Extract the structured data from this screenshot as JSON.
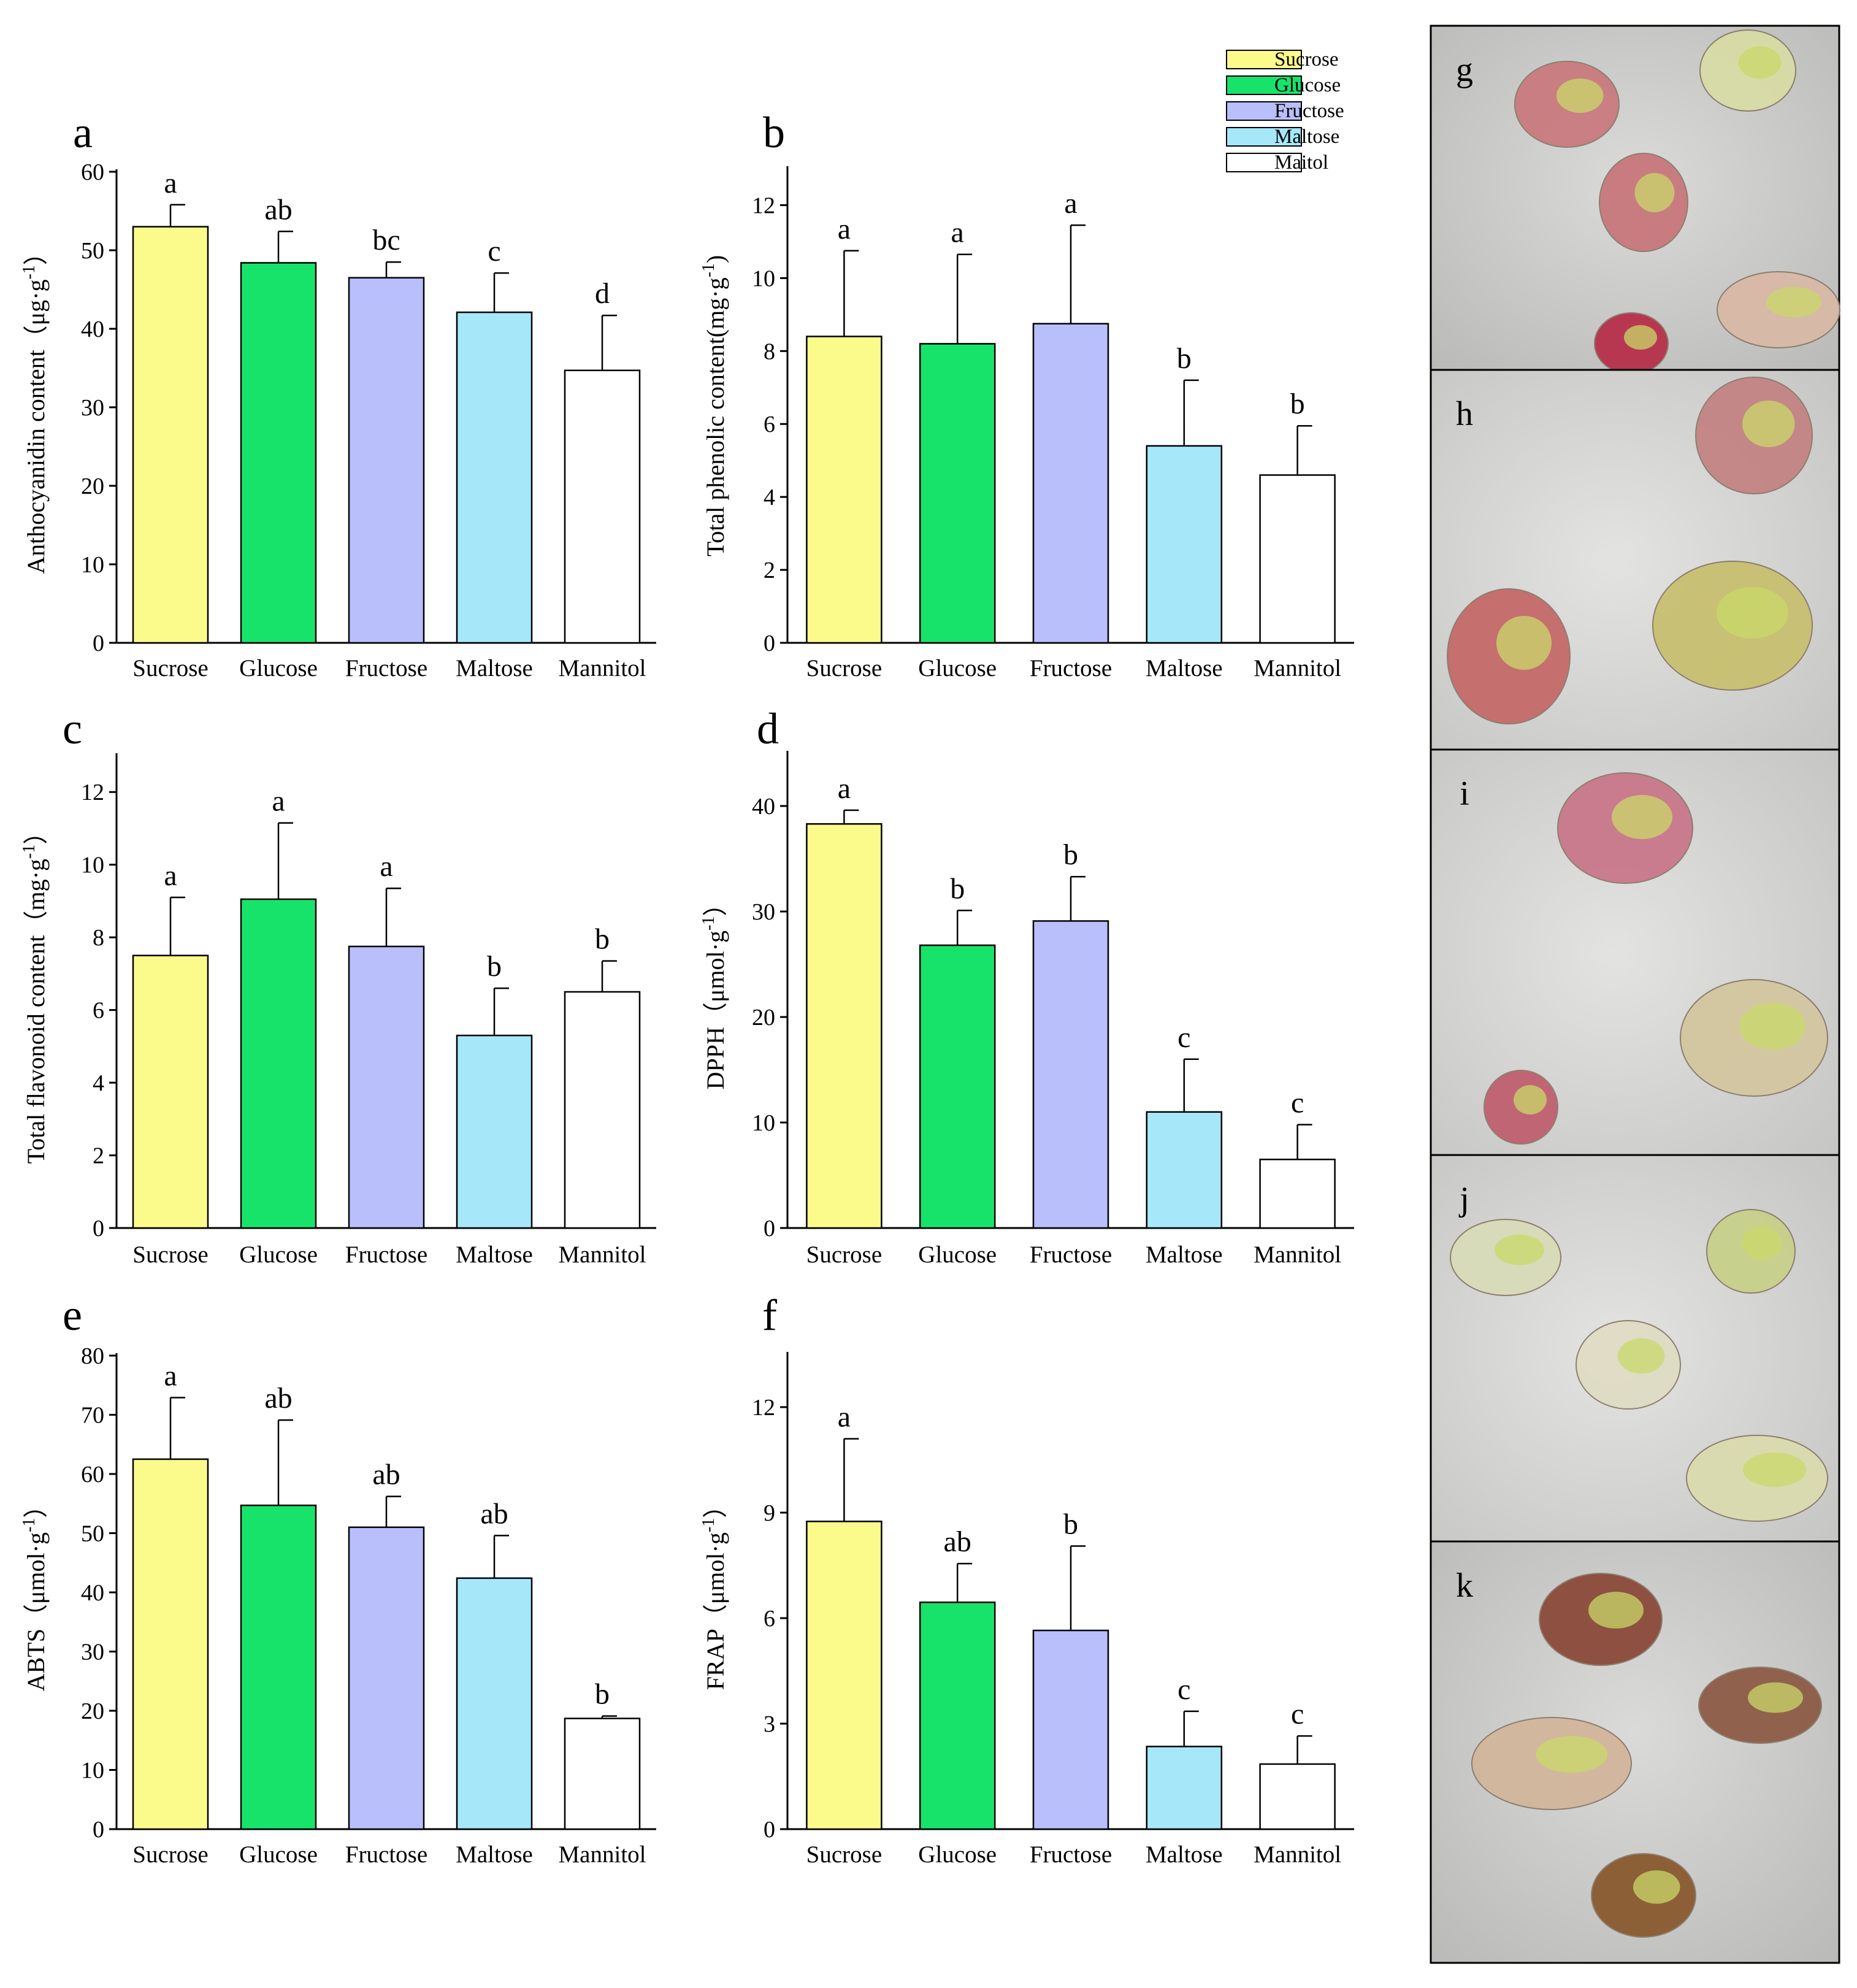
{
  "chart_data": [
    {
      "panel": "a",
      "type": "bar",
      "categories": [
        "Sucrose",
        "Glucose",
        "Fructose",
        "Maltose",
        "Mannitol"
      ],
      "values": [
        53.0,
        48.4,
        46.5,
        42.1,
        34.7
      ],
      "errors": [
        2.8,
        4.0,
        2.0,
        5.0,
        7.0
      ],
      "significance": [
        "a",
        "ab",
        "bc",
        "c",
        "d"
      ],
      "ylabel": "Anthocyanidin content（μg·g-1）",
      "ylim": [
        0,
        60
      ],
      "yticks": [
        0,
        10,
        20,
        30,
        40,
        50,
        60
      ]
    },
    {
      "panel": "b",
      "type": "bar",
      "categories": [
        "Sucrose",
        "Glucose",
        "Fructose",
        "Maltose",
        "Mannitol"
      ],
      "values": [
        8.4,
        8.2,
        8.75,
        5.4,
        4.6
      ],
      "errors": [
        2.35,
        2.45,
        2.7,
        1.8,
        1.35
      ],
      "significance": [
        "a",
        "a",
        "a",
        "b",
        "b"
      ],
      "ylabel": "Total phenolic content(mg·g-1)",
      "ylim": [
        0,
        13
      ],
      "yticks": [
        0,
        2,
        4,
        6,
        8,
        10,
        12
      ]
    },
    {
      "panel": "c",
      "type": "bar",
      "categories": [
        "Sucrose",
        "Glucose",
        "Fructose",
        "Maltose",
        "Mannitol"
      ],
      "values": [
        7.5,
        9.05,
        7.75,
        5.3,
        6.5
      ],
      "errors": [
        1.6,
        2.1,
        1.6,
        1.3,
        0.85
      ],
      "significance": [
        "a",
        "a",
        "a",
        "b",
        "b"
      ],
      "ylabel": "Total flavonoid content（mg·g-1）",
      "ylim": [
        0,
        13
      ],
      "yticks": [
        0,
        2,
        4,
        6,
        8,
        10,
        12
      ]
    },
    {
      "panel": "d",
      "type": "bar",
      "categories": [
        "Sucrose",
        "Glucose",
        "Fructose",
        "Maltose",
        "Mannitol"
      ],
      "values": [
        38.3,
        26.8,
        29.1,
        11.0,
        6.5
      ],
      "errors": [
        1.3,
        3.3,
        4.2,
        5.0,
        3.3
      ],
      "significance": [
        "a",
        "b",
        "b",
        "c",
        "c"
      ],
      "ylabel": "DPPH（μmol·g-1）",
      "ylim": [
        0,
        45
      ],
      "yticks": [
        0,
        10,
        20,
        30,
        40
      ]
    },
    {
      "panel": "e",
      "type": "bar",
      "categories": [
        "Sucrose",
        "Glucose",
        "Fructose",
        "Maltose",
        "Mannitol"
      ],
      "values": [
        62.5,
        54.7,
        51.0,
        42.4,
        18.7
      ],
      "errors": [
        10.4,
        14.4,
        5.2,
        7.2,
        0.4
      ],
      "significance": [
        "a",
        "ab",
        "ab",
        "ab",
        "b"
      ],
      "ylabel": "ABTS（μmol·g-1）",
      "ylim": [
        0,
        80
      ],
      "yticks": [
        0,
        10,
        20,
        30,
        40,
        50,
        60,
        70,
        80
      ]
    },
    {
      "panel": "f",
      "type": "bar",
      "categories": [
        "Sucrose",
        "Glucose",
        "Fructose",
        "Maltose",
        "Mannitol"
      ],
      "values": [
        8.75,
        6.45,
        5.65,
        2.35,
        1.85
      ],
      "errors": [
        2.35,
        1.1,
        2.4,
        1.0,
        0.8
      ],
      "significance": [
        "a",
        "ab",
        "b",
        "c",
        "c"
      ],
      "ylabel": "FRAP（μmol·g-1）",
      "ylim": [
        0,
        13.5
      ],
      "yticks": [
        0,
        3,
        6,
        9,
        12
      ]
    }
  ],
  "legend": [
    {
      "label": "Sucrose",
      "color": "#fbfb8c"
    },
    {
      "label": "Glucose",
      "color": "#17e36b"
    },
    {
      "label": "Fructose",
      "color": "#b9bffb"
    },
    {
      "label": "Maltose",
      "color": "#a6e8fa"
    },
    {
      "label": "Maitol",
      "color": "#ffffff"
    }
  ],
  "photos": {
    "letters": [
      "g",
      "h",
      "i",
      "j",
      "k"
    ]
  }
}
